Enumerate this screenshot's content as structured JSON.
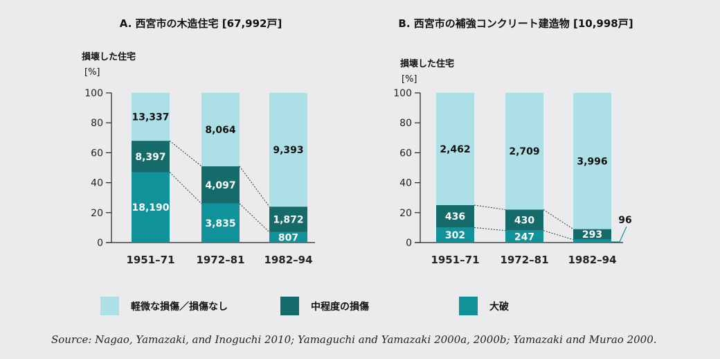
{
  "colors": {
    "minor": "#addfe6",
    "moderate": "#146b6a",
    "severe": "#10929a",
    "axis": "#222222",
    "background": "#ebebed"
  },
  "legend": {
    "items": [
      {
        "key": "minor",
        "label": "軽微な損傷／損傷なし"
      },
      {
        "key": "moderate",
        "label": "中程度の損傷"
      },
      {
        "key": "severe",
        "label": "大破"
      }
    ]
  },
  "source": "Source: Nagao, Yamazaki, and Inoguchi 2010; Yamaguchi and Yamazaki 2000a, 2000b; Yamazaki and Murao 2000.",
  "chart_data": [
    {
      "type": "bar",
      "stacked": true,
      "title": "A. 西宮市の木造住宅 [67,992戸]",
      "ylabel": "損壊した住宅",
      "yunit": "[%]",
      "ylim": [
        0,
        100
      ],
      "yticks": [
        "0",
        "20",
        "40",
        "60",
        "80",
        "100"
      ],
      "categories": [
        "1951–71",
        "1972–81",
        "1982–94"
      ],
      "series": [
        {
          "key": "severe",
          "name": "大破",
          "values": [
            47,
            26,
            7
          ],
          "labels": [
            "18,190",
            "3,835",
            "807"
          ]
        },
        {
          "key": "moderate",
          "name": "中程度の損傷",
          "values": [
            21,
            25,
            17
          ],
          "labels": [
            "8,397",
            "4,097",
            "1,872"
          ]
        },
        {
          "key": "minor",
          "name": "軽微な損傷／損傷なし",
          "values": [
            32,
            49,
            76
          ],
          "labels": [
            "13,337",
            "8,064",
            "9,393"
          ]
        }
      ]
    },
    {
      "type": "bar",
      "stacked": true,
      "title": "B. 西宮市の補強コンクリート建造物 [10,998戸]",
      "ylabel": "損壊した住宅",
      "yunit": "[%]",
      "ylim": [
        0,
        100
      ],
      "yticks": [
        "0",
        "20",
        "40",
        "60",
        "80",
        "100"
      ],
      "categories": [
        "1951–71",
        "1972–81",
        "1982–94"
      ],
      "series": [
        {
          "key": "severe",
          "name": "大破",
          "values": [
            10,
            8,
            2
          ],
          "labels": [
            "302",
            "247",
            "96"
          ]
        },
        {
          "key": "moderate",
          "name": "中程度の損傷",
          "values": [
            15,
            14,
            7
          ],
          "labels": [
            "436",
            "430",
            "293"
          ]
        },
        {
          "key": "minor",
          "name": "軽微な損傷／損傷なし",
          "values": [
            75,
            78,
            91
          ],
          "labels": [
            "2,462",
            "2,709",
            "3,996"
          ]
        }
      ]
    }
  ]
}
